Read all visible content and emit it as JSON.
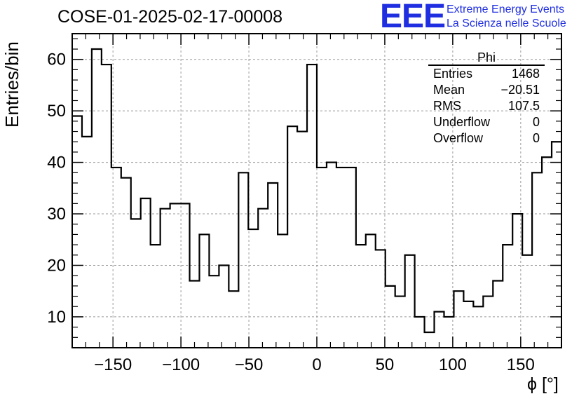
{
  "header": {
    "title": "COSE-01-2025-02-17-00008",
    "logo": "EEE",
    "logo_line1": "Extreme Energy Events",
    "logo_line2": "La Scienza nelle Scuole"
  },
  "stats": {
    "title": "Phi",
    "rows": [
      {
        "label": "Entries",
        "value": "1468"
      },
      {
        "label": "Mean",
        "value": "−20.51"
      },
      {
        "label": "RMS",
        "value": "107.5"
      },
      {
        "label": "Underflow",
        "value": "0"
      },
      {
        "label": "Overflow",
        "value": "0"
      }
    ]
  },
  "chart_data": {
    "type": "histogram",
    "title": "COSE-01-2025-02-17-00008",
    "xlabel": "ϕ [°]",
    "ylabel": "Entries/bin",
    "xlim": [
      -180,
      180
    ],
    "ylim": [
      4,
      65
    ],
    "bin_width": 7.2,
    "x_ticks": [
      -150,
      -100,
      -50,
      0,
      50,
      100,
      150
    ],
    "x_tick_labels": [
      "−150",
      "−100",
      "−50",
      "0",
      "50",
      "100",
      "150"
    ],
    "y_ticks": [
      10,
      20,
      30,
      40,
      50,
      60
    ],
    "grid": true,
    "line_color": "#000000",
    "values": [
      49,
      45,
      62,
      59,
      39,
      37,
      29,
      33,
      24,
      31,
      32,
      32,
      17,
      26,
      18,
      20,
      15,
      38,
      27,
      31,
      36,
      26,
      47,
      46,
      59,
      39,
      40,
      39,
      39,
      24,
      26,
      23,
      16,
      14,
      22,
      10,
      7,
      11,
      10,
      15,
      13,
      12,
      14,
      17,
      24,
      30,
      22,
      38,
      41,
      44
    ]
  }
}
